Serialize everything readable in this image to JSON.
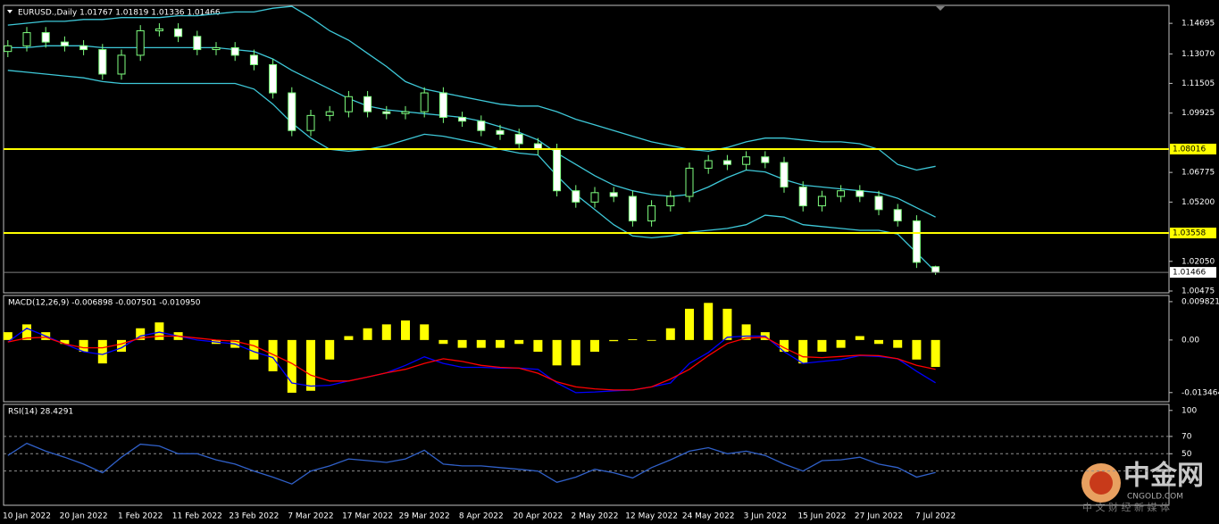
{
  "chart_data": [
    {
      "type": "candlestick",
      "title": "EURUSD.,Daily  1.01767 1.01819 1.01336 1.01466",
      "open": [
        1.132,
        1.135,
        1.142,
        1.137,
        1.135,
        1.133,
        1.12,
        1.13,
        1.143,
        1.144,
        1.14,
        1.133,
        1.134,
        1.13,
        1.125,
        1.11,
        1.09,
        1.098,
        1.1,
        1.108,
        1.1,
        1.099,
        1.1,
        1.11,
        1.097,
        1.095,
        1.09,
        1.088,
        1.083,
        1.08,
        1.058,
        1.052,
        1.057,
        1.055,
        1.042,
        1.05,
        1.055,
        1.07,
        1.074,
        1.072,
        1.076,
        1.073,
        1.06,
        1.05,
        1.055,
        1.058,
        1.055,
        1.048,
        1.042,
        1.01767
      ],
      "high": [
        1.138,
        1.145,
        1.145,
        1.14,
        1.138,
        1.136,
        1.133,
        1.146,
        1.147,
        1.147,
        1.143,
        1.137,
        1.137,
        1.133,
        1.128,
        1.113,
        1.101,
        1.103,
        1.111,
        1.111,
        1.103,
        1.103,
        1.113,
        1.113,
        1.1,
        1.098,
        1.093,
        1.091,
        1.086,
        1.083,
        1.061,
        1.06,
        1.06,
        1.058,
        1.053,
        1.058,
        1.073,
        1.077,
        1.077,
        1.079,
        1.079,
        1.076,
        1.063,
        1.058,
        1.061,
        1.061,
        1.058,
        1.051,
        1.045,
        1.01819
      ],
      "low": [
        1.129,
        1.132,
        1.134,
        1.132,
        1.13,
        1.117,
        1.117,
        1.127,
        1.14,
        1.137,
        1.13,
        1.13,
        1.127,
        1.122,
        1.107,
        1.087,
        1.087,
        1.095,
        1.097,
        1.097,
        1.096,
        1.096,
        1.097,
        1.094,
        1.092,
        1.087,
        1.085,
        1.08,
        1.077,
        1.055,
        1.049,
        1.049,
        1.052,
        1.039,
        1.039,
        1.047,
        1.052,
        1.067,
        1.069,
        1.069,
        1.07,
        1.057,
        1.047,
        1.047,
        1.052,
        1.052,
        1.045,
        1.039,
        1.017,
        1.01336
      ],
      "close": [
        1.135,
        1.142,
        1.137,
        1.135,
        1.133,
        1.12,
        1.13,
        1.143,
        1.144,
        1.14,
        1.133,
        1.134,
        1.13,
        1.125,
        1.11,
        1.09,
        1.098,
        1.1,
        1.108,
        1.1,
        1.099,
        1.1,
        1.11,
        1.097,
        1.095,
        1.09,
        1.088,
        1.083,
        1.08,
        1.058,
        1.052,
        1.057,
        1.055,
        1.042,
        1.05,
        1.055,
        1.07,
        1.074,
        1.072,
        1.076,
        1.073,
        1.06,
        1.05,
        1.055,
        1.058,
        1.055,
        1.048,
        1.042,
        1.02,
        1.01466
      ],
      "candle_color": "#7fff7f",
      "bull_fill": "#000000",
      "bear_fill": "#ffffff",
      "series": [
        {
          "color": "#3ec8d8",
          "values": [
            1.146,
            1.147,
            1.148,
            1.148,
            1.149,
            1.149,
            1.15,
            1.15,
            1.15,
            1.151,
            1.151,
            1.152,
            1.153,
            1.153,
            1.155,
            1.156,
            1.15,
            1.143,
            1.138,
            1.131,
            1.124,
            1.116,
            1.112,
            1.11,
            1.108,
            1.106,
            1.104,
            1.103,
            1.103,
            1.1,
            1.096,
            1.093,
            1.09,
            1.087,
            1.084,
            1.082,
            1.08,
            1.079,
            1.081,
            1.084,
            1.086,
            1.086,
            1.085,
            1.084,
            1.084,
            1.083,
            1.08,
            1.072,
            1.069,
            1.071
          ]
        },
        {
          "color": "#3ec8d8",
          "values": [
            1.134,
            1.134,
            1.135,
            1.135,
            1.135,
            1.134,
            1.134,
            1.134,
            1.134,
            1.134,
            1.134,
            1.134,
            1.133,
            1.132,
            1.128,
            1.122,
            1.117,
            1.112,
            1.107,
            1.103,
            1.101,
            1.1,
            1.099,
            1.098,
            1.097,
            1.095,
            1.092,
            1.089,
            1.085,
            1.078,
            1.072,
            1.066,
            1.061,
            1.058,
            1.056,
            1.055,
            1.056,
            1.06,
            1.065,
            1.069,
            1.068,
            1.064,
            1.061,
            1.06,
            1.059,
            1.058,
            1.057,
            1.054,
            1.049,
            1.044
          ]
        },
        {
          "color": "#3ec8d8",
          "values": [
            1.122,
            1.121,
            1.12,
            1.119,
            1.118,
            1.116,
            1.115,
            1.115,
            1.115,
            1.115,
            1.115,
            1.115,
            1.115,
            1.112,
            1.104,
            1.094,
            1.086,
            1.08,
            1.079,
            1.08,
            1.082,
            1.085,
            1.088,
            1.087,
            1.085,
            1.083,
            1.08,
            1.078,
            1.077,
            1.066,
            1.056,
            1.048,
            1.04,
            1.034,
            1.033,
            1.034,
            1.036,
            1.037,
            1.038,
            1.04,
            1.045,
            1.044,
            1.04,
            1.039,
            1.038,
            1.037,
            1.037,
            1.035,
            1.025,
            1.015
          ]
        }
      ],
      "hlines": [
        {
          "value": 1.08016,
          "color": "#ffff00"
        },
        {
          "value": 1.03558,
          "color": "#ffff00"
        }
      ],
      "price_line": {
        "value": 1.01466,
        "color": "#808080"
      },
      "ylim": [
        1.0038,
        1.1565
      ],
      "yticks": [
        1.14695,
        {
          "value": 1.1307,
          "label": "1.13070"
        },
        1.11505,
        1.09925,
        1.06775,
        {
          "value": 1.052,
          "label": "1.05200"
        },
        {
          "value": 1.0205,
          "label": "1.02050"
        },
        1.00475
      ]
    },
    {
      "type": "macd",
      "title": "MACD(12,26,9) -0.006898 -0.007501 -0.010950",
      "series": [
        {
          "kind": "histogram",
          "color": "#ffff00",
          "values": [
            0.002,
            0.004,
            0.002,
            -0.001,
            -0.003,
            -0.006,
            -0.003,
            0.003,
            0.0045,
            0.002,
            0.0,
            -0.001,
            -0.002,
            -0.005,
            -0.008,
            -0.0135,
            -0.013,
            -0.005,
            0.001,
            0.003,
            0.004,
            0.005,
            0.004,
            -0.001,
            -0.002,
            -0.002,
            -0.002,
            -0.001,
            -0.003,
            -0.0065,
            -0.0065,
            -0.003,
            -0.0003,
            0.0002,
            -0.0002,
            0.003,
            0.008,
            0.0095,
            0.008,
            0.004,
            0.002,
            -0.003,
            -0.006,
            -0.003,
            -0.002,
            0.001,
            -0.001,
            -0.002,
            -0.005,
            -0.006898
          ]
        },
        {
          "kind": "line",
          "color": "#0000ff",
          "values": [
            -0.0005,
            0.003,
            0.001,
            -0.001,
            -0.003,
            -0.0037,
            -0.002,
            0.001,
            0.002,
            0.001,
            0.0,
            -0.0005,
            -0.001,
            -0.003,
            -0.0045,
            -0.011,
            -0.0118,
            -0.0116,
            -0.0105,
            -0.0095,
            -0.0084,
            -0.0065,
            -0.0043,
            -0.006,
            -0.007,
            -0.007,
            -0.0072,
            -0.0072,
            -0.0075,
            -0.011,
            -0.0135,
            -0.0133,
            -0.013,
            -0.0128,
            -0.012,
            -0.011,
            -0.006,
            -0.0032,
            0.0007,
            0.001,
            0.001,
            -0.003,
            -0.006,
            -0.0055,
            -0.005,
            -0.004,
            -0.0042,
            -0.0048,
            -0.008,
            -0.01095
          ]
        },
        {
          "kind": "line",
          "color": "#ff0000",
          "values": [
            -0.0005,
            0.0005,
            0.0007,
            -0.001,
            -0.002,
            -0.002,
            -0.001,
            0.0005,
            0.001,
            0.001,
            0.0005,
            0.0,
            -0.0003,
            -0.0015,
            -0.0037,
            -0.006,
            -0.009,
            -0.0105,
            -0.0105,
            -0.0095,
            -0.0084,
            -0.0075,
            -0.006,
            -0.0048,
            -0.0055,
            -0.0065,
            -0.007,
            -0.0072,
            -0.0085,
            -0.0107,
            -0.012,
            -0.0125,
            -0.0128,
            -0.0128,
            -0.012,
            -0.01,
            -0.0075,
            -0.004,
            -0.0009,
            0.0005,
            0.0007,
            -0.002,
            -0.0043,
            -0.0045,
            -0.0042,
            -0.0039,
            -0.004,
            -0.0048,
            -0.0065,
            -0.007501
          ]
        }
      ],
      "ylim": [
        -0.0158,
        0.0114
      ],
      "yticks": [
        0.009821,
        {
          "value": 0,
          "label": "0.00"
        },
        -0.013464
      ]
    },
    {
      "type": "rsi",
      "title": "RSI(14) 28.4291",
      "categories": [
        null,
        "10 Jan 2022",
        null,
        null,
        "20 Jan 2022",
        null,
        null,
        "1 Feb 2022",
        null,
        null,
        "11 Feb 2022",
        null,
        null,
        "23 Feb 2022",
        null,
        null,
        "7 Mar 2022",
        null,
        null,
        "17 Mar 2022",
        null,
        null,
        "29 Mar 2022",
        null,
        null,
        "8 Apr 2022",
        null,
        null,
        "20 Apr 2022",
        null,
        null,
        "2 May 2022",
        null,
        null,
        "12 May 2022",
        null,
        null,
        "24 May 2022",
        null,
        null,
        "3 Jun 2022",
        null,
        null,
        "15 Jun 2022",
        null,
        null,
        "27 Jun 2022",
        null,
        null,
        "7 Jul 2022"
      ],
      "color": "#3060c8",
      "values": [
        48,
        62,
        53,
        46,
        38,
        28,
        46,
        61,
        59,
        50,
        50,
        43,
        38,
        30,
        23,
        15,
        30,
        36,
        44,
        42,
        40,
        44,
        54,
        38,
        36,
        36,
        34,
        32,
        30,
        17,
        23,
        32,
        28,
        22,
        34,
        43,
        53,
        57,
        50,
        53,
        48,
        38,
        30,
        42,
        43,
        46,
        38,
        34,
        23,
        28.4291
      ],
      "levels": [
        70,
        50,
        30
      ],
      "ylim": [
        -9.5,
        107
      ],
      "yticks": [
        100,
        70,
        50
      ]
    }
  ],
  "watermark": {
    "name": "中金网",
    "site": "CNGOLD.COM",
    "slogan": "中 文 财 经 新 媒 体"
  }
}
